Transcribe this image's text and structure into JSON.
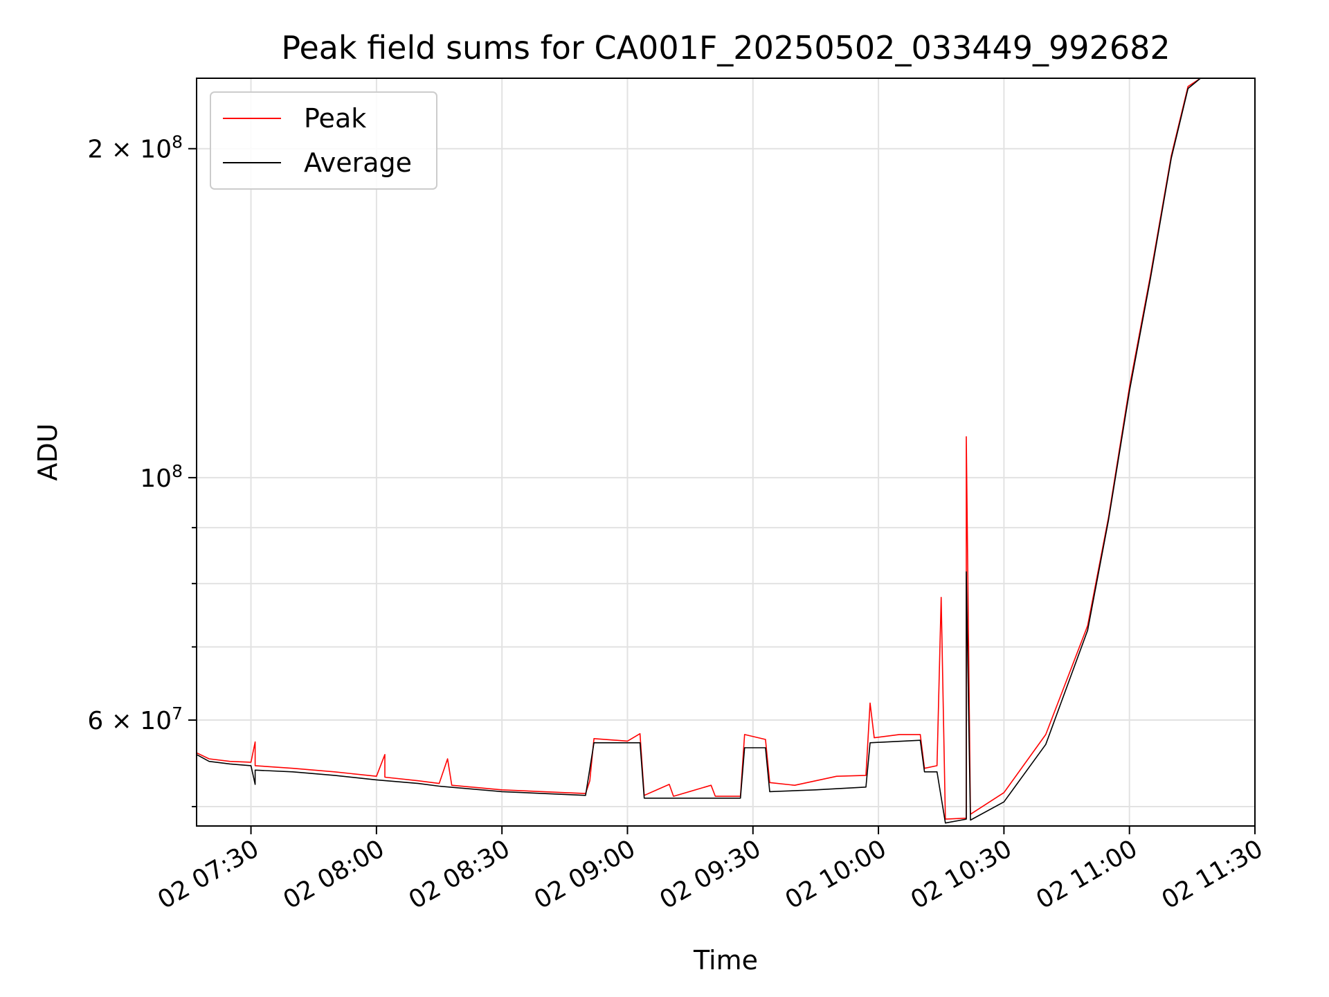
{
  "chart_data": {
    "type": "line",
    "title": "Peak field sums for CA001F_20250502_033449_992682",
    "xlabel": "Time",
    "ylabel": "ADU",
    "yscale": "log",
    "grid": true,
    "legend_position": "top-left",
    "xlim": [
      "2025-05-02 07:17",
      "2025-05-02 11:30"
    ],
    "ylim": [
      48000000,
      232000000
    ],
    "x_ticks": [
      {
        "value": "2025-05-02 07:30",
        "label": "02 07:30"
      },
      {
        "value": "2025-05-02 08:00",
        "label": "02 08:00"
      },
      {
        "value": "2025-05-02 08:30",
        "label": "02 08:30"
      },
      {
        "value": "2025-05-02 09:00",
        "label": "02 09:00"
      },
      {
        "value": "2025-05-02 09:30",
        "label": "02 09:30"
      },
      {
        "value": "2025-05-02 10:00",
        "label": "02 10:00"
      },
      {
        "value": "2025-05-02 10:30",
        "label": "02 10:30"
      },
      {
        "value": "2025-05-02 11:00",
        "label": "02 11:00"
      },
      {
        "value": "2025-05-02 11:30",
        "label": "02 11:30"
      }
    ],
    "y_major_ticks": [
      {
        "value": 60000000,
        "label_coef": "6 × 10",
        "label_exp": "7"
      },
      {
        "value": 100000000,
        "label_coef": "10",
        "label_exp": "8"
      },
      {
        "value": 200000000,
        "label_coef": "2 × 10",
        "label_exp": "8"
      }
    ],
    "y_minor_ticks": [
      50000000,
      70000000,
      80000000,
      90000000
    ],
    "series": [
      {
        "name": "Peak",
        "color": "#ff0000",
        "points": [
          [
            "2025-05-02 07:17",
            56500000
          ],
          [
            "2025-05-02 07:17",
            130000000
          ],
          [
            "2025-05-02 07:17",
            56000000
          ],
          [
            "2025-05-02 07:20",
            55300000
          ],
          [
            "2025-05-02 07:25",
            55000000
          ],
          [
            "2025-05-02 07:30",
            54900000
          ],
          [
            "2025-05-02 07:31",
            57300000
          ],
          [
            "2025-05-02 07:31",
            54500000
          ],
          [
            "2025-05-02 07:40",
            54200000
          ],
          [
            "2025-05-02 07:50",
            53800000
          ],
          [
            "2025-05-02 08:00",
            53300000
          ],
          [
            "2025-05-02 08:02",
            55800000
          ],
          [
            "2025-05-02 08:02",
            53200000
          ],
          [
            "2025-05-02 08:10",
            52800000
          ],
          [
            "2025-05-02 08:15",
            52500000
          ],
          [
            "2025-05-02 08:17",
            55300000
          ],
          [
            "2025-05-02 08:18",
            52300000
          ],
          [
            "2025-05-02 08:30",
            51800000
          ],
          [
            "2025-05-02 08:45",
            51500000
          ],
          [
            "2025-05-02 08:50",
            51400000
          ],
          [
            "2025-05-02 08:51",
            52800000
          ],
          [
            "2025-05-02 08:52",
            57700000
          ],
          [
            "2025-05-02 09:00",
            57400000
          ],
          [
            "2025-05-02 09:03",
            58300000
          ],
          [
            "2025-05-02 09:04",
            51200000
          ],
          [
            "2025-05-02 09:10",
            52400000
          ],
          [
            "2025-05-02 09:11",
            51100000
          ],
          [
            "2025-05-02 09:20",
            52300000
          ],
          [
            "2025-05-02 09:21",
            51100000
          ],
          [
            "2025-05-02 09:27",
            51100000
          ],
          [
            "2025-05-02 09:28",
            58200000
          ],
          [
            "2025-05-02 09:33",
            57600000
          ],
          [
            "2025-05-02 09:34",
            52600000
          ],
          [
            "2025-05-02 09:40",
            52300000
          ],
          [
            "2025-05-02 09:50",
            53300000
          ],
          [
            "2025-05-02 09:57",
            53400000
          ],
          [
            "2025-05-02 09:58",
            62200000
          ],
          [
            "2025-05-02 09:59",
            57800000
          ],
          [
            "2025-05-02 10:05",
            58200000
          ],
          [
            "2025-05-02 10:10",
            58200000
          ],
          [
            "2025-05-02 10:11",
            54200000
          ],
          [
            "2025-05-02 10:14",
            54500000
          ],
          [
            "2025-05-02 10:15",
            77700000
          ],
          [
            "2025-05-02 10:16",
            48700000
          ],
          [
            "2025-05-02 10:21",
            48800000
          ],
          [
            "2025-05-02 10:21",
            109000000
          ],
          [
            "2025-05-02 10:22",
            49200000
          ],
          [
            "2025-05-02 10:30",
            51500000
          ],
          [
            "2025-05-02 10:40",
            58200000
          ],
          [
            "2025-05-02 10:50",
            73200000
          ],
          [
            "2025-05-02 10:55",
            92000000
          ],
          [
            "2025-05-02 11:00",
            121000000
          ],
          [
            "2025-05-02 11:05",
            153000000
          ],
          [
            "2025-05-02 11:10",
            197000000
          ],
          [
            "2025-05-02 11:14",
            228000000
          ],
          [
            "2025-05-02 11:17",
            232000000
          ]
        ]
      },
      {
        "name": "Average",
        "color": "#000000",
        "points": [
          [
            "2025-05-02 07:17",
            56200000
          ],
          [
            "2025-05-02 07:17",
            61000000
          ],
          [
            "2025-05-02 07:17",
            55800000
          ],
          [
            "2025-05-02 07:20",
            55000000
          ],
          [
            "2025-05-02 07:25",
            54700000
          ],
          [
            "2025-05-02 07:30",
            54500000
          ],
          [
            "2025-05-02 07:31",
            52400000
          ],
          [
            "2025-05-02 07:31",
            54000000
          ],
          [
            "2025-05-02 07:40",
            53800000
          ],
          [
            "2025-05-02 07:50",
            53400000
          ],
          [
            "2025-05-02 08:00",
            52900000
          ],
          [
            "2025-05-02 08:10",
            52500000
          ],
          [
            "2025-05-02 08:15",
            52200000
          ],
          [
            "2025-05-02 08:30",
            51600000
          ],
          [
            "2025-05-02 08:45",
            51300000
          ],
          [
            "2025-05-02 08:50",
            51200000
          ],
          [
            "2025-05-02 08:52",
            57200000
          ],
          [
            "2025-05-02 09:03",
            57200000
          ],
          [
            "2025-05-02 09:04",
            50900000
          ],
          [
            "2025-05-02 09:27",
            50900000
          ],
          [
            "2025-05-02 09:28",
            56600000
          ],
          [
            "2025-05-02 09:33",
            56600000
          ],
          [
            "2025-05-02 09:34",
            51600000
          ],
          [
            "2025-05-02 09:45",
            51800000
          ],
          [
            "2025-05-02 09:57",
            52100000
          ],
          [
            "2025-05-02 09:58",
            57200000
          ],
          [
            "2025-05-02 10:10",
            57500000
          ],
          [
            "2025-05-02 10:11",
            53800000
          ],
          [
            "2025-05-02 10:14",
            53800000
          ],
          [
            "2025-05-02 10:16",
            48300000
          ],
          [
            "2025-05-02 10:21",
            48700000
          ],
          [
            "2025-05-02 10:21",
            82000000
          ],
          [
            "2025-05-02 10:22",
            48600000
          ],
          [
            "2025-05-02 10:30",
            50500000
          ],
          [
            "2025-05-02 10:40",
            57000000
          ],
          [
            "2025-05-02 10:50",
            72500000
          ],
          [
            "2025-05-02 10:55",
            91500000
          ],
          [
            "2025-05-02 11:00",
            120000000
          ],
          [
            "2025-05-02 11:05",
            152000000
          ],
          [
            "2025-05-02 11:10",
            196000000
          ],
          [
            "2025-05-02 11:14",
            227000000
          ],
          [
            "2025-05-02 11:17",
            232000000
          ]
        ]
      }
    ]
  }
}
